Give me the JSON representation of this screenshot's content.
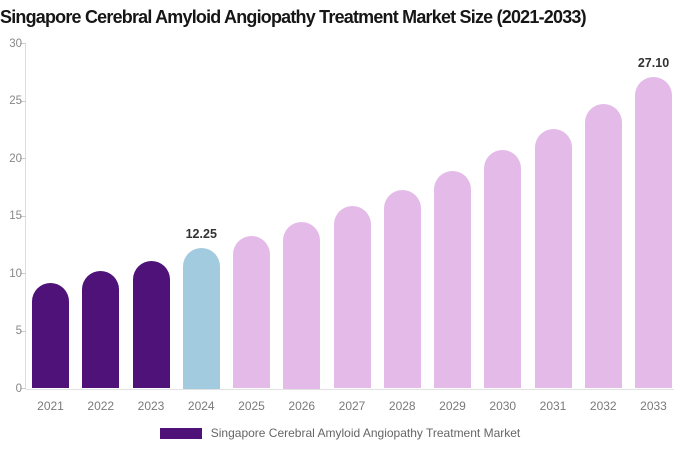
{
  "title": "Singapore Cerebral Amyloid Angiopathy Treatment Market Size (2021-2033)",
  "chart_data": {
    "type": "bar",
    "title": "Singapore Cerebral Amyloid Angiopathy Treatment Market Size (2021-2033)",
    "xlabel": "",
    "ylabel": "",
    "categories": [
      "2021",
      "2022",
      "2023",
      "2024",
      "2025",
      "2026",
      "2027",
      "2028",
      "2029",
      "2030",
      "2031",
      "2032",
      "2033"
    ],
    "values": [
      9.2,
      10.2,
      11.1,
      12.25,
      13.3,
      14.5,
      15.9,
      17.3,
      18.9,
      20.7,
      22.6,
      24.7,
      27.1
    ],
    "bar_roles": [
      "historical",
      "historical",
      "historical",
      "base_year",
      "forecast",
      "forecast",
      "forecast",
      "forecast",
      "forecast",
      "forecast",
      "forecast",
      "forecast",
      "forecast"
    ],
    "role_colors": {
      "historical": "#4f1279",
      "base_year": "#a3cbe0",
      "forecast": "#e4bbe8"
    },
    "value_labels": {
      "2024": "12.25",
      "2033": "27.10"
    },
    "ylim": [
      0,
      30
    ],
    "yticks": [
      0,
      5,
      10,
      15,
      20,
      25,
      30
    ],
    "grid": false,
    "legend_position": "bottom"
  },
  "legend": {
    "label": "Singapore Cerebral Amyloid Angiopathy Treatment Market",
    "swatch_color": "#4f1279"
  }
}
